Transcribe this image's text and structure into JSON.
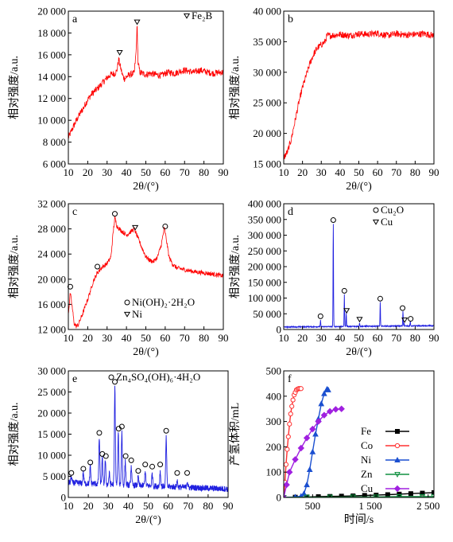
{
  "chart_data": [
    {
      "panel": "a",
      "type": "line",
      "xlabel": "2θ/(°)",
      "ylabel": "相对强度/a.u.",
      "xlim": [
        10,
        90
      ],
      "ylim": [
        6000,
        20000
      ],
      "xticks": [
        "10",
        "20",
        "30",
        "40",
        "50",
        "60",
        "70",
        "80",
        "90"
      ],
      "xtick_values": [
        10,
        20,
        30,
        40,
        50,
        60,
        70,
        80,
        90
      ],
      "yticks": [
        "6 000",
        "8 000",
        "10 000",
        "12 000",
        "14 000",
        "16 000",
        "18 000",
        "20 000"
      ],
      "ytick_values": [
        6000,
        8000,
        10000,
        12000,
        14000,
        16000,
        18000,
        20000
      ],
      "line_color": "#ff0000",
      "series": [
        {
          "x": [
            10,
            12,
            15,
            18,
            20,
            22,
            25,
            28,
            30,
            32,
            34,
            35,
            36,
            37,
            38,
            39,
            40,
            42,
            44,
            45,
            45.5,
            46,
            47,
            48,
            50,
            52,
            55,
            58,
            60,
            62,
            65,
            68,
            70,
            72,
            75,
            78,
            80,
            82,
            85,
            88,
            90
          ],
          "y": [
            8400,
            9200,
            10300,
            11200,
            11900,
            12400,
            12900,
            13500,
            13900,
            14200,
            14300,
            14500,
            15600,
            14800,
            14100,
            13800,
            14000,
            14200,
            14300,
            16300,
            18800,
            15200,
            14400,
            14300,
            14200,
            14300,
            14200,
            14100,
            14300,
            14400,
            14300,
            14500,
            14600,
            14500,
            14400,
            14600,
            14500,
            14400,
            14300,
            14400,
            14400
          ]
        }
      ],
      "markers": [
        {
          "symbol": "triangle",
          "x": 36.5,
          "y": 16200
        },
        {
          "symbol": "triangle",
          "x": 45.5,
          "y": 19000
        }
      ],
      "legend": [
        {
          "symbol": "triangle",
          "label": "Fe₂B"
        }
      ],
      "legend_position": "top-right"
    },
    {
      "panel": "b",
      "type": "line",
      "xlabel": "2θ/(°)",
      "ylabel": "相对强度/a.u.",
      "xlim": [
        10,
        90
      ],
      "ylim": [
        15000,
        40000
      ],
      "xticks": [
        "10",
        "20",
        "30",
        "40",
        "50",
        "60",
        "70",
        "80",
        "90"
      ],
      "xtick_values": [
        10,
        20,
        30,
        40,
        50,
        60,
        70,
        80,
        90
      ],
      "yticks": [
        "15 000",
        "20 000",
        "25 000",
        "30 000",
        "35 000",
        "40 000"
      ],
      "ytick_values": [
        15000,
        20000,
        25000,
        30000,
        35000,
        40000
      ],
      "line_color": "#ff0000",
      "series": [
        {
          "x": [
            10,
            12,
            14,
            16,
            18,
            20,
            22,
            24,
            26,
            28,
            30,
            32,
            33,
            35,
            40,
            45,
            50,
            55,
            60,
            65,
            70,
            75,
            80,
            85,
            90
          ],
          "y": [
            16000,
            17000,
            19000,
            22000,
            25000,
            27500,
            29500,
            31500,
            33000,
            34000,
            34500,
            35000,
            36000,
            36000,
            36200,
            36000,
            36300,
            36200,
            36400,
            36000,
            36300,
            36100,
            36200,
            36300,
            36000
          ]
        }
      ],
      "markers": [],
      "legend": []
    },
    {
      "panel": "c",
      "type": "line",
      "xlabel": "2θ/(°)",
      "ylabel": "相对强度/a.u.",
      "xlim": [
        10,
        90
      ],
      "ylim": [
        12000,
        32000
      ],
      "xticks": [
        "10",
        "20",
        "30",
        "40",
        "50",
        "60",
        "70",
        "80",
        "90"
      ],
      "xtick_values": [
        10,
        20,
        30,
        40,
        50,
        60,
        70,
        80,
        90
      ],
      "yticks": [
        "12 000",
        "16 000",
        "20 000",
        "24 000",
        "28 000",
        "32 000"
      ],
      "ytick_values": [
        12000,
        16000,
        20000,
        24000,
        28000,
        32000
      ],
      "line_color": "#ff0000",
      "series": [
        {
          "x": [
            10,
            11,
            12,
            13,
            14,
            15,
            17,
            20,
            23,
            25,
            27,
            30,
            32,
            33,
            34,
            35,
            37,
            40,
            42,
            44,
            46,
            48,
            50,
            52,
            54,
            56,
            58,
            59.5,
            60.5,
            62,
            64,
            66,
            70,
            75,
            80,
            85,
            90
          ],
          "y": [
            14500,
            17800,
            15500,
            13000,
            12500,
            12700,
            14200,
            16800,
            19800,
            21000,
            21800,
            22500,
            23500,
            27000,
            29800,
            28500,
            27800,
            27000,
            27500,
            28000,
            26500,
            25000,
            23600,
            23000,
            22800,
            23500,
            25500,
            28100,
            26500,
            23500,
            22300,
            21800,
            21500,
            21200,
            21000,
            20800,
            20500
          ]
        }
      ],
      "markers": [
        {
          "symbol": "circle",
          "x": 11,
          "y": 18800
        },
        {
          "symbol": "circle",
          "x": 25,
          "y": 22000
        },
        {
          "symbol": "circle",
          "x": 34,
          "y": 30400
        },
        {
          "symbol": "triangle",
          "x": 44.5,
          "y": 28200
        },
        {
          "symbol": "circle",
          "x": 60,
          "y": 28400
        }
      ],
      "legend": [
        {
          "symbol": "circle",
          "label": "Ni(OH)₂·2H₂O"
        },
        {
          "symbol": "triangle",
          "label": "Ni"
        }
      ],
      "legend_position": "bottom-right"
    },
    {
      "panel": "d",
      "type": "line",
      "xlabel": "2θ/(°)",
      "ylabel": "相对强度/a.u.",
      "xlim": [
        10,
        90
      ],
      "ylim": [
        0,
        400000
      ],
      "xticks": [
        "10",
        "20",
        "30",
        "40",
        "50",
        "60",
        "70",
        "80",
        "90"
      ],
      "xtick_values": [
        10,
        20,
        30,
        40,
        50,
        60,
        70,
        80,
        90
      ],
      "yticks": [
        "0",
        "50 000",
        "100 000",
        "150 000",
        "200 000",
        "250 000",
        "300 000",
        "350 000",
        "400 000"
      ],
      "ytick_values": [
        0,
        50000,
        100000,
        150000,
        200000,
        250000,
        300000,
        350000,
        400000
      ],
      "line_color": "#2020e0",
      "peaks_on_baseline": {
        "baseline_start": 8000,
        "baseline_end": 12000,
        "peaks": [
          {
            "x": 29.6,
            "y": 28000
          },
          {
            "x": 36.4,
            "y": 335000
          },
          {
            "x": 42.3,
            "y": 110000
          },
          {
            "x": 43.3,
            "y": 50000
          },
          {
            "x": 50.4,
            "y": 20000
          },
          {
            "x": 61.4,
            "y": 85000
          },
          {
            "x": 73.5,
            "y": 55000
          },
          {
            "x": 74.1,
            "y": 18000
          },
          {
            "x": 77.4,
            "y": 22000
          }
        ]
      },
      "markers": [
        {
          "symbol": "circle",
          "x": 29.6,
          "y": 42000
        },
        {
          "symbol": "circle",
          "x": 36.4,
          "y": 348000
        },
        {
          "symbol": "circle",
          "x": 42.3,
          "y": 123000
        },
        {
          "symbol": "triangle",
          "x": 43.5,
          "y": 60000
        },
        {
          "symbol": "triangle",
          "x": 50.4,
          "y": 32000
        },
        {
          "symbol": "circle",
          "x": 61.4,
          "y": 98000
        },
        {
          "symbol": "circle",
          "x": 73.3,
          "y": 68000
        },
        {
          "symbol": "triangle",
          "x": 74.4,
          "y": 30000
        },
        {
          "symbol": "circle",
          "x": 77.6,
          "y": 34000
        }
      ],
      "legend": [
        {
          "symbol": "circle",
          "label": "Cu₂O"
        },
        {
          "symbol": "triangle",
          "label": "Cu"
        }
      ],
      "legend_position": "top-right"
    },
    {
      "panel": "e",
      "type": "line",
      "xlabel": "2θ/(°)",
      "ylabel": "相对强度/a.u.",
      "xlim": [
        10,
        90
      ],
      "ylim": [
        0,
        30000
      ],
      "xticks": [
        "10",
        "20",
        "30",
        "40",
        "50",
        "60",
        "70",
        "80",
        "90"
      ],
      "xtick_values": [
        10,
        20,
        30,
        40,
        50,
        60,
        70,
        80,
        90
      ],
      "yticks": [
        "0",
        "5 000",
        "10 000",
        "15 000",
        "20 000",
        "25 000",
        "30 000"
      ],
      "ytick_values": [
        0,
        5000,
        10000,
        15000,
        20000,
        25000,
        30000
      ],
      "line_color": "#2020e0",
      "peaks_on_baseline": {
        "baseline_start": 3500,
        "baseline_end": 2000,
        "peaks": [
          {
            "x": 11.5,
            "y": 5000
          },
          {
            "x": 17.5,
            "y": 6000
          },
          {
            "x": 21,
            "y": 7500
          },
          {
            "x": 25.5,
            "y": 14500
          },
          {
            "x": 27,
            "y": 9500
          },
          {
            "x": 28.5,
            "y": 9000
          },
          {
            "x": 30.5,
            "y": 6000
          },
          {
            "x": 33.3,
            "y": 26500
          },
          {
            "x": 35,
            "y": 15500
          },
          {
            "x": 36.8,
            "y": 16000
          },
          {
            "x": 38.5,
            "y": 9000
          },
          {
            "x": 41.5,
            "y": 8000
          },
          {
            "x": 45,
            "y": 5500
          },
          {
            "x": 48.5,
            "y": 7000
          },
          {
            "x": 52,
            "y": 6500
          },
          {
            "x": 56,
            "y": 7000
          },
          {
            "x": 59,
            "y": 15000
          },
          {
            "x": 64.5,
            "y": 5000
          },
          {
            "x": 69.5,
            "y": 5000
          }
        ]
      },
      "markers": [
        {
          "symbol": "circle",
          "x": 11.5,
          "y": 5800
        },
        {
          "symbol": "circle",
          "x": 17.5,
          "y": 6800
        },
        {
          "symbol": "circle",
          "x": 21,
          "y": 8300
        },
        {
          "symbol": "circle",
          "x": 25.5,
          "y": 15300
        },
        {
          "symbol": "circle",
          "x": 27,
          "y": 10300
        },
        {
          "symbol": "circle",
          "x": 28.8,
          "y": 9800
        },
        {
          "symbol": "circle",
          "x": 33.3,
          "y": 27400
        },
        {
          "symbol": "circle",
          "x": 35.2,
          "y": 16300
        },
        {
          "symbol": "circle",
          "x": 36.8,
          "y": 16800
        },
        {
          "symbol": "circle",
          "x": 38.7,
          "y": 9800
        },
        {
          "symbol": "circle",
          "x": 41.5,
          "y": 8800
        },
        {
          "symbol": "circle",
          "x": 45,
          "y": 6300
        },
        {
          "symbol": "circle",
          "x": 48.5,
          "y": 7800
        },
        {
          "symbol": "circle",
          "x": 52,
          "y": 7300
        },
        {
          "symbol": "circle",
          "x": 56,
          "y": 7800
        },
        {
          "symbol": "circle",
          "x": 59,
          "y": 15800
        },
        {
          "symbol": "circle",
          "x": 64.5,
          "y": 5800
        },
        {
          "symbol": "circle",
          "x": 69.5,
          "y": 5800
        }
      ],
      "legend": [
        {
          "symbol": "circle",
          "label": "Zn₄SO₄(OH)₆·4H₂O"
        }
      ],
      "legend_position": "top"
    },
    {
      "panel": "f",
      "type": "line",
      "xlabel": "时间/s",
      "ylabel": "产氢体积/mL",
      "xlim": [
        0,
        2600
      ],
      "ylim": [
        0,
        500
      ],
      "xticks": [
        "500",
        "1 500",
        "2 500"
      ],
      "xtick_values": [
        500,
        1500,
        2500
      ],
      "yticks": [
        "0",
        "100",
        "200",
        "300",
        "400",
        "500"
      ],
      "ytick_values": [
        0,
        100,
        200,
        300,
        400,
        500
      ],
      "series": [
        {
          "name": "Fe",
          "color": "#000000",
          "marker": "square",
          "x": [
            0,
            200,
            400,
            600,
            800,
            1000,
            1200,
            1400,
            1600,
            1800,
            2000,
            2200,
            2400,
            2600
          ],
          "y": [
            0,
            1,
            2,
            3,
            4,
            5,
            6,
            8,
            9,
            11,
            13,
            15,
            17,
            19
          ]
        },
        {
          "name": "Co",
          "color": "#ff3030",
          "marker": "circle-open",
          "x": [
            0,
            20,
            40,
            60,
            80,
            100,
            120,
            140,
            160,
            180,
            200,
            220,
            240,
            260,
            280,
            300
          ],
          "y": [
            0,
            60,
            130,
            190,
            240,
            290,
            330,
            360,
            385,
            405,
            415,
            425,
            428,
            430,
            430,
            430
          ]
        },
        {
          "name": "Ni",
          "color": "#1a4fd0",
          "marker": "triangle",
          "x": [
            0,
            200,
            300,
            350,
            400,
            450,
            500,
            550,
            600,
            650,
            700,
            750,
            770
          ],
          "y": [
            0,
            2,
            5,
            15,
            50,
            110,
            180,
            250,
            310,
            370,
            410,
            428,
            425
          ]
        },
        {
          "name": "Zn",
          "color": "#109040",
          "marker": "triangle-down-open",
          "x": [
            0,
            400,
            800,
            1200,
            1600,
            2000,
            2400,
            2600
          ],
          "y": [
            0,
            1,
            1,
            2,
            2,
            3,
            3,
            3
          ]
        },
        {
          "name": "Cu",
          "color": "#a020e0",
          "marker": "diamond",
          "x": [
            0,
            50,
            100,
            200,
            300,
            400,
            500,
            600,
            700,
            800,
            900,
            1000
          ],
          "y": [
            0,
            50,
            100,
            150,
            195,
            235,
            270,
            300,
            325,
            340,
            348,
            350
          ]
        }
      ],
      "legend_position": "bottom-right"
    }
  ]
}
